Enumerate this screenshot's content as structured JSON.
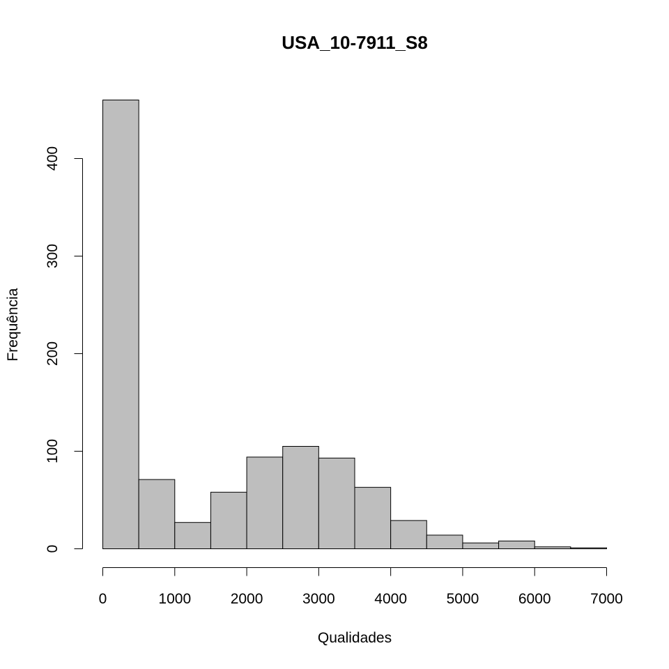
{
  "chart_data": {
    "type": "bar",
    "title": "USA_10-7911_S8",
    "xlabel": "Qualidades",
    "ylabel": "Frequência",
    "bin_edges": [
      0,
      500,
      1000,
      1500,
      2000,
      2500,
      3000,
      3500,
      4000,
      4500,
      5000,
      5500,
      6000,
      6500,
      7000
    ],
    "values": [
      460,
      71,
      27,
      58,
      94,
      105,
      93,
      63,
      29,
      14,
      6,
      8,
      2,
      1
    ],
    "xlim": [
      0,
      7000
    ],
    "ylim": [
      0,
      460
    ],
    "x_ticks": [
      0,
      1000,
      2000,
      3000,
      4000,
      5000,
      6000,
      7000
    ],
    "y_ticks": [
      0,
      100,
      200,
      300,
      400
    ],
    "grid": false,
    "colors": {
      "bar_fill": "#bebebe",
      "bar_stroke": "#000000"
    }
  }
}
